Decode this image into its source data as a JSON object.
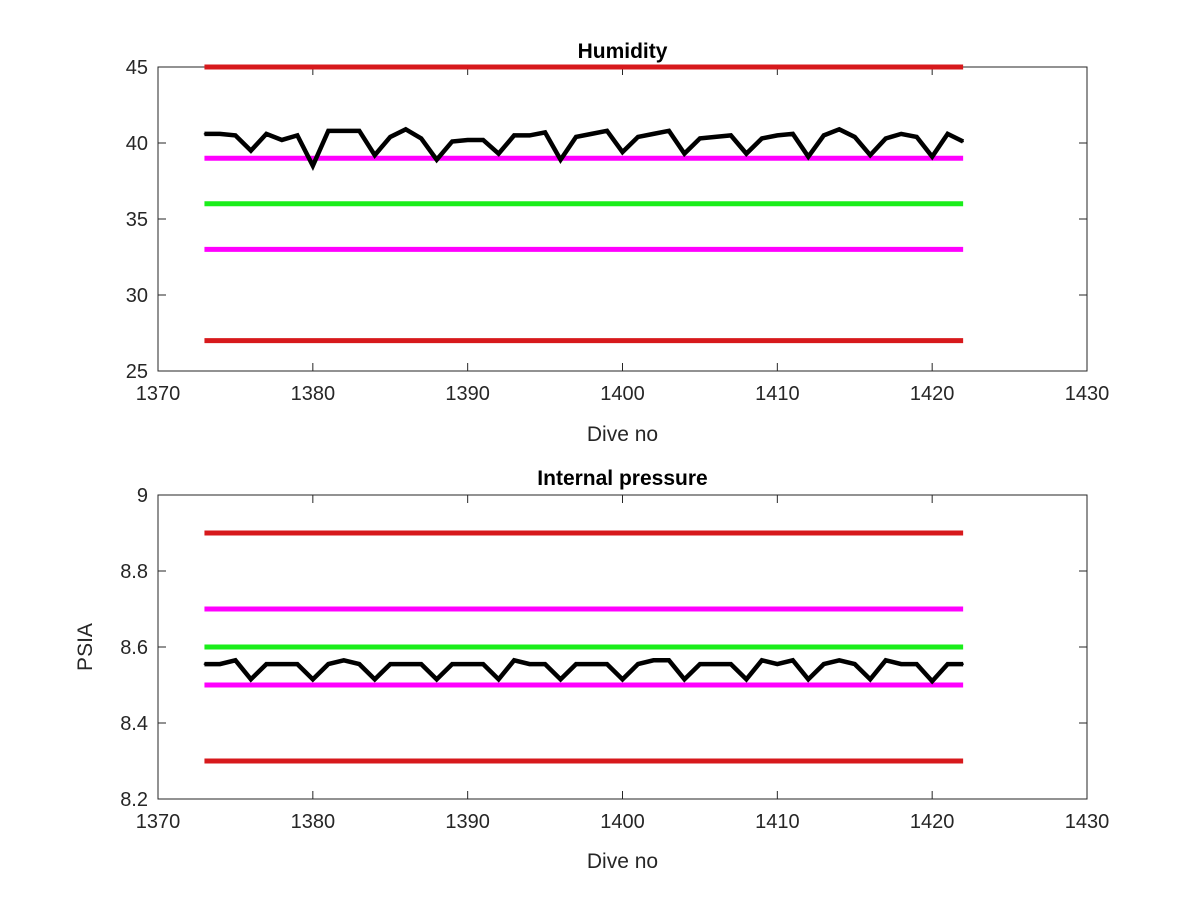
{
  "chart_data": [
    {
      "type": "line",
      "title": "Humidity",
      "xlabel": "Dive no",
      "ylabel": "",
      "xlim": [
        1370,
        1430
      ],
      "ylim": [
        25,
        45
      ],
      "xticks": [
        1370,
        1380,
        1390,
        1400,
        1410,
        1420,
        1430
      ],
      "yticks": [
        25,
        30,
        35,
        40,
        45
      ],
      "grid": false,
      "reference_lines": [
        {
          "y": 45,
          "x_range": [
            1373,
            1422
          ],
          "color": "#d7191c"
        },
        {
          "y": 39,
          "x_range": [
            1373,
            1422
          ],
          "color": "#ff00ff"
        },
        {
          "y": 36,
          "x_range": [
            1373,
            1422
          ],
          "color": "#1aee1a"
        },
        {
          "y": 33,
          "x_range": [
            1373,
            1422
          ],
          "color": "#ff00ff"
        },
        {
          "y": 27,
          "x_range": [
            1373,
            1422
          ],
          "color": "#d7191c"
        }
      ],
      "series": [
        {
          "color": "#000000",
          "x": [
            1373,
            1374,
            1375,
            1376,
            1377,
            1378,
            1379,
            1380,
            1381,
            1382,
            1383,
            1384,
            1385,
            1386,
            1387,
            1388,
            1389,
            1390,
            1391,
            1392,
            1393,
            1394,
            1395,
            1396,
            1397,
            1398,
            1399,
            1400,
            1401,
            1402,
            1403,
            1404,
            1405,
            1406,
            1407,
            1408,
            1409,
            1410,
            1411,
            1412,
            1413,
            1414,
            1415,
            1416,
            1417,
            1418,
            1419,
            1420,
            1421,
            1422
          ],
          "values": [
            40.6,
            40.6,
            40.5,
            39.5,
            40.6,
            40.2,
            40.5,
            38.5,
            40.8,
            40.8,
            40.8,
            39.2,
            40.4,
            40.9,
            40.3,
            38.9,
            40.1,
            40.2,
            40.2,
            39.3,
            40.5,
            40.5,
            40.7,
            38.9,
            40.4,
            40.6,
            40.8,
            39.4,
            40.4,
            40.6,
            40.8,
            39.3,
            40.3,
            40.4,
            40.5,
            39.3,
            40.3,
            40.5,
            40.6,
            39.1,
            40.5,
            40.9,
            40.4,
            39.2,
            40.3,
            40.6,
            40.4,
            39.1,
            40.6,
            40.1
          ]
        }
      ]
    },
    {
      "type": "line",
      "title": "Internal pressure",
      "xlabel": "Dive no",
      "ylabel": "PSIA",
      "xlim": [
        1370,
        1430
      ],
      "ylim": [
        8.2,
        9
      ],
      "xticks": [
        1370,
        1380,
        1390,
        1400,
        1410,
        1420,
        1430
      ],
      "yticks": [
        8.2,
        8.4,
        8.6,
        8.8,
        9
      ],
      "grid": false,
      "reference_lines": [
        {
          "y": 8.9,
          "x_range": [
            1373,
            1422
          ],
          "color": "#d7191c"
        },
        {
          "y": 8.7,
          "x_range": [
            1373,
            1422
          ],
          "color": "#ff00ff"
        },
        {
          "y": 8.6,
          "x_range": [
            1373,
            1422
          ],
          "color": "#1aee1a"
        },
        {
          "y": 8.5,
          "x_range": [
            1373,
            1422
          ],
          "color": "#ff00ff"
        },
        {
          "y": 8.3,
          "x_range": [
            1373,
            1422
          ],
          "color": "#d7191c"
        }
      ],
      "series": [
        {
          "color": "#000000",
          "x": [
            1373,
            1374,
            1375,
            1376,
            1377,
            1378,
            1379,
            1380,
            1381,
            1382,
            1383,
            1384,
            1385,
            1386,
            1387,
            1388,
            1389,
            1390,
            1391,
            1392,
            1393,
            1394,
            1395,
            1396,
            1397,
            1398,
            1399,
            1400,
            1401,
            1402,
            1403,
            1404,
            1405,
            1406,
            1407,
            1408,
            1409,
            1410,
            1411,
            1412,
            1413,
            1414,
            1415,
            1416,
            1417,
            1418,
            1419,
            1420,
            1421,
            1422
          ],
          "values": [
            8.555,
            8.555,
            8.565,
            8.515,
            8.555,
            8.555,
            8.555,
            8.515,
            8.555,
            8.565,
            8.555,
            8.515,
            8.555,
            8.555,
            8.555,
            8.515,
            8.555,
            8.555,
            8.555,
            8.515,
            8.565,
            8.555,
            8.555,
            8.515,
            8.555,
            8.555,
            8.555,
            8.515,
            8.555,
            8.565,
            8.565,
            8.515,
            8.555,
            8.555,
            8.555,
            8.515,
            8.565,
            8.555,
            8.565,
            8.515,
            8.555,
            8.565,
            8.555,
            8.515,
            8.565,
            8.555,
            8.555,
            8.51,
            8.555,
            8.555
          ]
        }
      ]
    }
  ]
}
